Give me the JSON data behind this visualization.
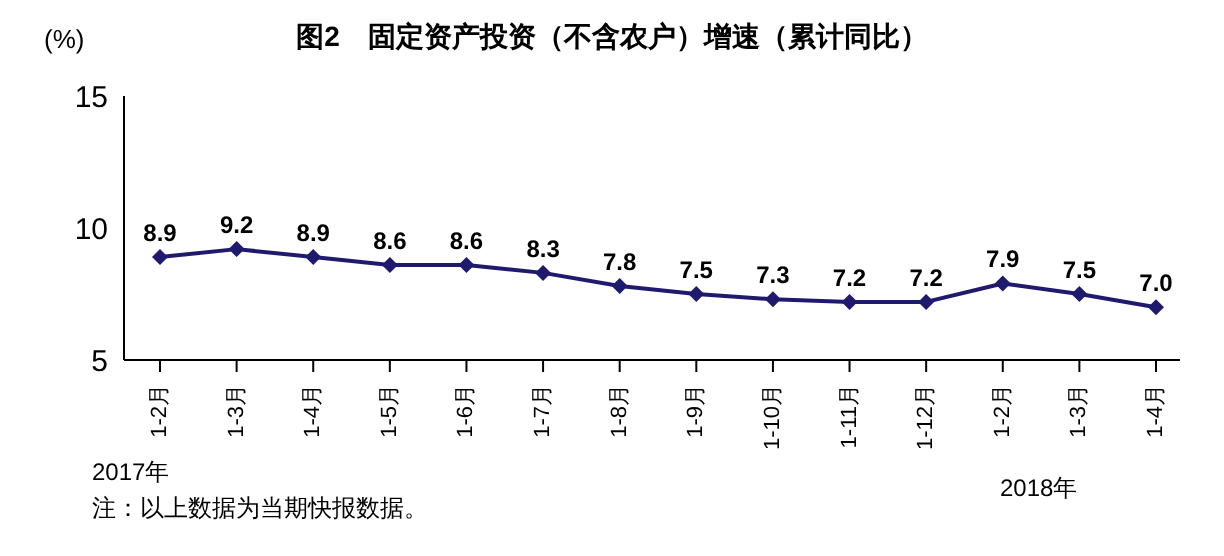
{
  "chart_data": {
    "type": "line",
    "title": "图2　固定资产投资（不含农户）增速（累计同比）",
    "ylabel": "(%)",
    "categories": [
      "1-2月",
      "1-3月",
      "1-4月",
      "1-5月",
      "1-6月",
      "1-7月",
      "1-8月",
      "1-9月",
      "1-10月",
      "1-11月",
      "1-12月",
      "1-2月",
      "1-3月",
      "1-4月"
    ],
    "series": [
      {
        "color": "#1f1a6e",
        "values": [
          8.9,
          9.2,
          8.9,
          8.6,
          8.6,
          8.3,
          7.8,
          7.5,
          7.3,
          7.2,
          7.2,
          7.9,
          7.5,
          7.0
        ],
        "value_labels": [
          "8.9",
          "9.2",
          "8.9",
          "8.6",
          "8.6",
          "8.3",
          "7.8",
          "7.5",
          "7.3",
          "7.2",
          "7.2",
          "7.9",
          "7.5",
          "7.0"
        ]
      }
    ],
    "ylim": [
      5,
      15
    ],
    "yticks": [
      5,
      10,
      15
    ],
    "grid": false,
    "legend": false,
    "marker": "diamond",
    "line_style": "solid",
    "annotations": [
      "2017年",
      "2018年",
      "注：以上数据为当期快报数据。"
    ]
  }
}
